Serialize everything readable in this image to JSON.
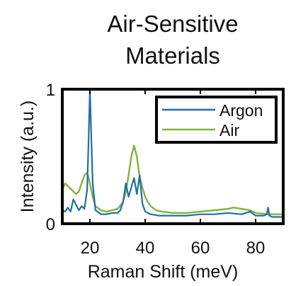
{
  "chart_data": {
    "type": "line",
    "title_lines": [
      "Air-Sensitive",
      "Materials"
    ],
    "xlabel": "Raman Shift (meV)",
    "ylabel": "Intensity (a.u.)",
    "xlim": [
      10,
      90
    ],
    "ylim": [
      0,
      1
    ],
    "x_ticks": [
      20,
      40,
      60,
      80
    ],
    "x_tick_labels": [
      "20",
      "40",
      "60",
      "80"
    ],
    "y_ticks": [
      0,
      1
    ],
    "y_tick_labels": [
      "0",
      "1"
    ],
    "grid": false,
    "legend_position": "top-right",
    "series": [
      {
        "name": "Argon",
        "color": "#1f6fa3",
        "x": [
          10,
          11,
          12,
          13,
          14,
          15,
          16,
          17,
          18,
          19,
          19.5,
          20,
          20.5,
          21,
          22,
          24,
          26,
          28,
          30,
          31,
          32,
          33,
          34,
          35,
          36,
          37,
          38,
          39,
          40,
          42,
          45,
          50,
          55,
          60,
          65,
          70,
          75,
          78,
          80,
          83,
          84,
          84.5,
          85,
          86,
          88,
          90
        ],
        "y": [
          0.1,
          0.09,
          0.12,
          0.09,
          0.18,
          0.14,
          0.1,
          0.13,
          0.11,
          0.25,
          0.6,
          1.0,
          0.65,
          0.3,
          0.1,
          0.07,
          0.07,
          0.08,
          0.08,
          0.1,
          0.16,
          0.3,
          0.2,
          0.27,
          0.34,
          0.22,
          0.36,
          0.15,
          0.09,
          0.07,
          0.06,
          0.06,
          0.06,
          0.07,
          0.07,
          0.08,
          0.07,
          0.09,
          0.06,
          0.06,
          0.07,
          0.12,
          0.06,
          0.05,
          0.05,
          0.05
        ]
      },
      {
        "name": "Air",
        "color": "#7fb23f",
        "x": [
          10,
          11,
          12,
          13,
          14,
          15,
          16,
          17,
          18,
          19,
          20,
          21,
          22,
          24,
          26,
          28,
          30,
          32,
          33,
          34,
          35,
          36,
          37,
          38,
          39,
          40,
          41,
          42,
          44,
          46,
          50,
          55,
          60,
          65,
          70,
          72,
          75,
          78,
          80,
          85,
          90
        ],
        "y": [
          0.25,
          0.3,
          0.28,
          0.26,
          0.24,
          0.22,
          0.24,
          0.3,
          0.36,
          0.38,
          0.3,
          0.2,
          0.13,
          0.1,
          0.09,
          0.1,
          0.11,
          0.16,
          0.24,
          0.36,
          0.5,
          0.58,
          0.5,
          0.35,
          0.27,
          0.2,
          0.16,
          0.13,
          0.1,
          0.09,
          0.08,
          0.08,
          0.09,
          0.1,
          0.11,
          0.12,
          0.11,
          0.1,
          0.08,
          0.07,
          0.07
        ]
      }
    ]
  }
}
